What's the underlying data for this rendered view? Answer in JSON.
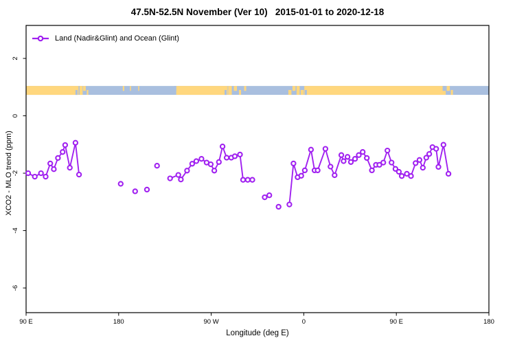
{
  "chart_data": {
    "type": "line",
    "title": "47.5N-52.5N November (Ver 10)   2015-01-01 to 2020-12-18",
    "legend": "Land (Nadir&Glint) and Ocean (Glint)",
    "xlabel": "Longitude (deg E)",
    "ylabel": "XCO2 - MLO trend (ppm)",
    "xlim": [
      90,
      540
    ],
    "ylim": [
      -6.86,
      3.15
    ],
    "x_ticks": [
      {
        "pos": 90,
        "label": "90 E"
      },
      {
        "pos": 180,
        "label": "180"
      },
      {
        "pos": 270,
        "label": "90 W"
      },
      {
        "pos": 360,
        "label": "0"
      },
      {
        "pos": 450,
        "label": "90 E"
      },
      {
        "pos": 540,
        "label": "180"
      }
    ],
    "y_ticks": [
      {
        "pos": 2,
        "label": "2"
      },
      {
        "pos": 0,
        "label": "0"
      },
      {
        "pos": -2,
        "label": "-2"
      },
      {
        "pos": -4,
        "label": "-4"
      },
      {
        "pos": -6,
        "label": "-6"
      }
    ],
    "colors": {
      "series": "#A020F0",
      "land": "#FFD77E",
      "ocean": "#A9BFDF",
      "axis": "#000000"
    },
    "band": {
      "y_top": 1.04,
      "y_bottom": 0.73,
      "land_segments": [
        [
          90,
          141
        ],
        [
          236,
          286
        ],
        [
          360.5,
          498
        ]
      ],
      "land_speckles": [
        [
          142,
          145,
          "full"
        ],
        [
          145.5,
          148,
          "top"
        ],
        [
          149,
          150.5,
          "bottom"
        ],
        [
          184,
          185.5,
          "top"
        ],
        [
          191,
          192,
          "top"
        ],
        [
          199,
          200,
          "top"
        ],
        [
          286.5,
          290,
          "full"
        ],
        [
          292,
          295,
          "top"
        ],
        [
          297,
          299,
          "bottom"
        ],
        [
          302,
          304,
          "top"
        ],
        [
          345,
          348,
          "bottom"
        ],
        [
          349,
          352,
          "top"
        ],
        [
          353,
          356,
          "full"
        ],
        [
          357,
          360,
          "bottom"
        ],
        [
          499,
          502,
          "top"
        ],
        [
          503,
          505,
          "bottom"
        ]
      ],
      "ocean_speckles": [
        [
          138,
          140,
          "bottom"
        ],
        [
          234,
          236,
          "top"
        ],
        [
          283,
          285,
          "bottom"
        ],
        [
          361,
          363,
          "bottom"
        ],
        [
          495,
          498,
          "top"
        ]
      ]
    },
    "segments": [
      [
        [
          92,
          -2.0
        ],
        [
          98.5,
          -2.12
        ],
        [
          104.5,
          -2.0
        ],
        [
          109,
          -2.12
        ],
        [
          113.5,
          -1.66
        ],
        [
          117,
          -1.86
        ],
        [
          121,
          -1.47
        ],
        [
          125.5,
          -1.26
        ],
        [
          128,
          -1.02
        ],
        [
          132.5,
          -1.81
        ],
        [
          138,
          -0.94
        ],
        [
          141.5,
          -2.05
        ]
      ],
      [
        [
          230,
          -2.18
        ],
        [
          238,
          -2.06
        ],
        [
          240.5,
          -2.22
        ],
        [
          246.5,
          -1.91
        ],
        [
          251.5,
          -1.67
        ],
        [
          255.5,
          -1.58
        ],
        [
          260.5,
          -1.5
        ],
        [
          265.5,
          -1.63
        ],
        [
          269.5,
          -1.69
        ],
        [
          273,
          -1.91
        ],
        [
          277.5,
          -1.61
        ],
        [
          281,
          -1.07
        ],
        [
          285,
          -1.46
        ],
        [
          289.5,
          -1.46
        ],
        [
          293,
          -1.41
        ],
        [
          298,
          -1.35
        ],
        [
          301,
          -2.23
        ],
        [
          305.5,
          -2.23
        ],
        [
          310,
          -2.23
        ]
      ],
      [
        [
          322,
          -2.84
        ],
        [
          326.5,
          -2.77
        ]
      ],
      [
        [
          346,
          -3.09
        ],
        [
          350,
          -1.66
        ],
        [
          354,
          -2.14
        ],
        [
          357.5,
          -2.09
        ],
        [
          361,
          -1.9
        ],
        [
          367,
          -1.18
        ],
        [
          370.5,
          -1.9
        ],
        [
          373.5,
          -1.9
        ],
        [
          381,
          -1.15
        ],
        [
          386,
          -1.77
        ],
        [
          390,
          -2.07
        ],
        [
          396.5,
          -1.37
        ],
        [
          398.7,
          -1.58
        ],
        [
          402.5,
          -1.43
        ],
        [
          405.8,
          -1.61
        ],
        [
          409.8,
          -1.5
        ],
        [
          413.5,
          -1.37
        ],
        [
          417.3,
          -1.26
        ],
        [
          421.3,
          -1.47
        ],
        [
          426.2,
          -1.9
        ],
        [
          430.2,
          -1.71
        ],
        [
          433.5,
          -1.71
        ],
        [
          437.3,
          -1.63
        ],
        [
          441.3,
          -1.21
        ],
        [
          445.3,
          -1.63
        ],
        [
          449.1,
          -1.85
        ],
        [
          452.5,
          -1.95
        ],
        [
          455.3,
          -2.1
        ],
        [
          460.2,
          -2.02
        ],
        [
          464.2,
          -2.1
        ],
        [
          468.7,
          -1.65
        ],
        [
          472.5,
          -1.54
        ],
        [
          475.8,
          -1.81
        ],
        [
          479.1,
          -1.46
        ],
        [
          482,
          -1.33
        ],
        [
          485.1,
          -1.09
        ],
        [
          488.7,
          -1.15
        ],
        [
          490.9,
          -1.78
        ],
        [
          495.8,
          -1.01
        ],
        [
          500.7,
          -2.02
        ]
      ]
    ],
    "lone_points": [
      [
        182,
        -2.37
      ],
      [
        196,
        -2.63
      ],
      [
        207.5,
        -2.57
      ],
      [
        217.3,
        -1.74
      ],
      [
        335.5,
        -3.17
      ]
    ]
  }
}
